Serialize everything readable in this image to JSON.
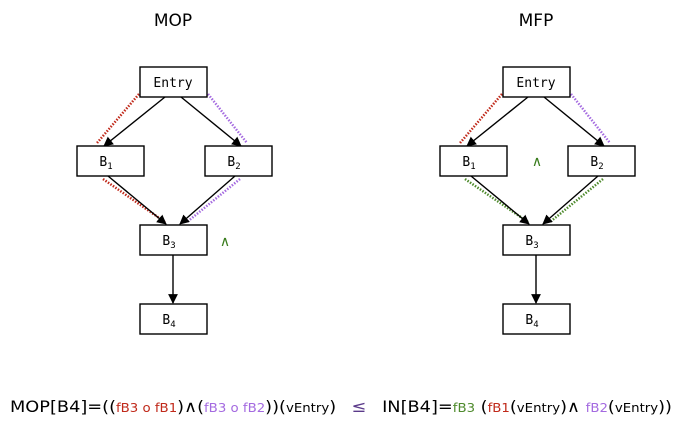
{
  "left_diagram": {
    "title": "MOP",
    "meet_symbol": "∧",
    "nodes": {
      "entry": "Entry",
      "b1": {
        "base": "B",
        "sub": "1"
      },
      "b2": {
        "base": "B",
        "sub": "2"
      },
      "b3": {
        "base": "B",
        "sub": "3"
      },
      "b4": {
        "base": "B",
        "sub": "4"
      }
    }
  },
  "right_diagram": {
    "title": "MFP",
    "meet_symbol": "∧",
    "nodes": {
      "entry": "Entry",
      "b1": {
        "base": "B",
        "sub": "1"
      },
      "b2": {
        "base": "B",
        "sub": "2"
      },
      "b3": {
        "base": "B",
        "sub": "3"
      },
      "b4": {
        "base": "B",
        "sub": "4"
      }
    }
  },
  "formula": {
    "mop_lhs": "MOP[B4]=((",
    "f_b3_a": "fB3",
    "compose_1": " o ",
    "f_b1": "fB1",
    "close_meet": ")∧(",
    "f_b3_b": "fB3",
    "compose_2": " o ",
    "f_b2": "fB2",
    "close_apply": "))(",
    "v_entry": "vEntry",
    "close_1": ")",
    "leq": "≤",
    "in_lhs": "IN[B4]=",
    "in_f_b3": "fB3",
    "in_open": " (",
    "in_f_b1": "fB1",
    "in_open_b1": "(",
    "in_v_entry_1": "vEntry",
    "in_meet": ")∧ ",
    "in_f_b2": "fB2",
    "in_open_b2": "(",
    "in_v_entry_2": "vEntry",
    "in_close": "))"
  },
  "colors": {
    "path_b1": "#c0291a",
    "path_b2": "#a46ae0",
    "merged_path": "#4e8a2c",
    "meet": "#3a7d1e",
    "leq": "#5b3a8a"
  }
}
